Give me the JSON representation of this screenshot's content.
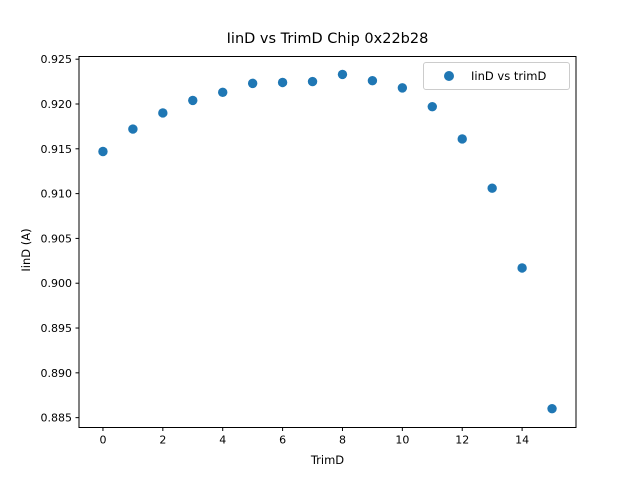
{
  "chart_data": {
    "type": "scatter",
    "title": "IinD vs TrimD Chip 0x22b28",
    "xlabel": "TrimD",
    "ylabel": "IinD (A)",
    "legend": [
      {
        "label": "IinD vs trimD",
        "marker_color": "#1f77b4",
        "position": "upper right"
      }
    ],
    "marker_color": "#1f77b4",
    "grid": false,
    "x": [
      0,
      1,
      2,
      3,
      4,
      5,
      6,
      7,
      8,
      9,
      10,
      11,
      12,
      13,
      14,
      15
    ],
    "y": [
      0.9147,
      0.9172,
      0.919,
      0.9204,
      0.9213,
      0.9223,
      0.9224,
      0.9225,
      0.9233,
      0.9226,
      0.9218,
      0.9197,
      0.9161,
      0.9106,
      0.9017,
      0.886
    ],
    "xlim": [
      -0.8,
      15.8
    ],
    "ylim": [
      0.8839,
      0.9253
    ],
    "xticks": {
      "values": [
        0,
        2,
        4,
        6,
        8,
        10,
        12,
        14
      ],
      "labels": [
        "0",
        "2",
        "4",
        "6",
        "8",
        "10",
        "12",
        "14"
      ]
    },
    "yticks": {
      "values": [
        0.885,
        0.89,
        0.895,
        0.9,
        0.905,
        0.91,
        0.915,
        0.92,
        0.925
      ],
      "labels": [
        "0.885",
        "0.890",
        "0.895",
        "0.900",
        "0.905",
        "0.910",
        "0.915",
        "0.920",
        "0.925"
      ]
    }
  }
}
